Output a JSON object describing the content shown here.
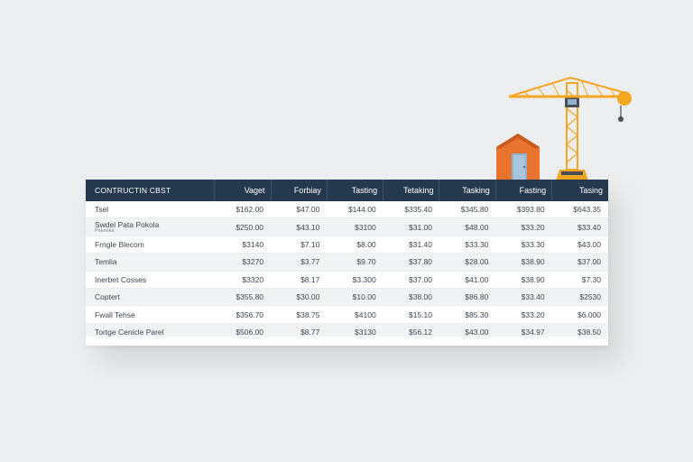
{
  "table": {
    "headers": [
      "CONTRUCTIN CBST",
      "Vaget",
      "Forbiay",
      "Tasting",
      "Tetaking",
      "Tasking",
      "Fasting",
      "Tasing"
    ],
    "rows": [
      {
        "label": "Tsel",
        "sub": "",
        "values": [
          "$162.00",
          "$47.00",
          "$144.00",
          "$335.40",
          "$345.80",
          "$393.80",
          "$643.35"
        ]
      },
      {
        "label": "Swdel Pata Pokola",
        "sub": "Poknoka",
        "values": [
          "$250.00",
          "$43.10",
          "$3100",
          "$31.00",
          "$48.00",
          "$33.20",
          "$33.40"
        ]
      },
      {
        "label": "Frngle Blecom",
        "sub": "",
        "values": [
          "$3140",
          "$7.10",
          "$8.00",
          "$31.40",
          "$33.30",
          "$33.30",
          "$43.00"
        ]
      },
      {
        "label": "Temlia",
        "sub": "",
        "values": [
          "$3270",
          "$3.77",
          "$9.70",
          "$37.80",
          "$28.00",
          "$38.90",
          "$37.00"
        ]
      },
      {
        "label": "Inerbet Cosses",
        "sub": "",
        "values": [
          "$3320",
          "$8.17",
          "$3.300",
          "$37.00",
          "$41.00",
          "$38.90",
          "$7.30"
        ]
      },
      {
        "label": "Coptert",
        "sub": "",
        "values": [
          "$355.80",
          "$30.00",
          "$10.00",
          "$38.00",
          "$86.80",
          "$33.40",
          "$2530"
        ]
      },
      {
        "label": "Fwall Tehse",
        "sub": "",
        "values": [
          "$356.70",
          "$38.75",
          "$4100",
          "$15.10",
          "$85.30",
          "$33.20",
          "$6.000"
        ]
      },
      {
        "label": "Tortge Cenicle Parel",
        "sub": "",
        "values": [
          "$506.00",
          "$8.77",
          "$3130",
          "$56.12",
          "$43.00",
          "$34.97",
          "$38.50"
        ]
      }
    ]
  },
  "colors": {
    "header_bg": "#26384e",
    "crane": "#f5a623",
    "house": "#e8742f",
    "background": "#eceef0"
  },
  "icons": {
    "crane": "tower-crane-icon",
    "house": "house-icon"
  }
}
